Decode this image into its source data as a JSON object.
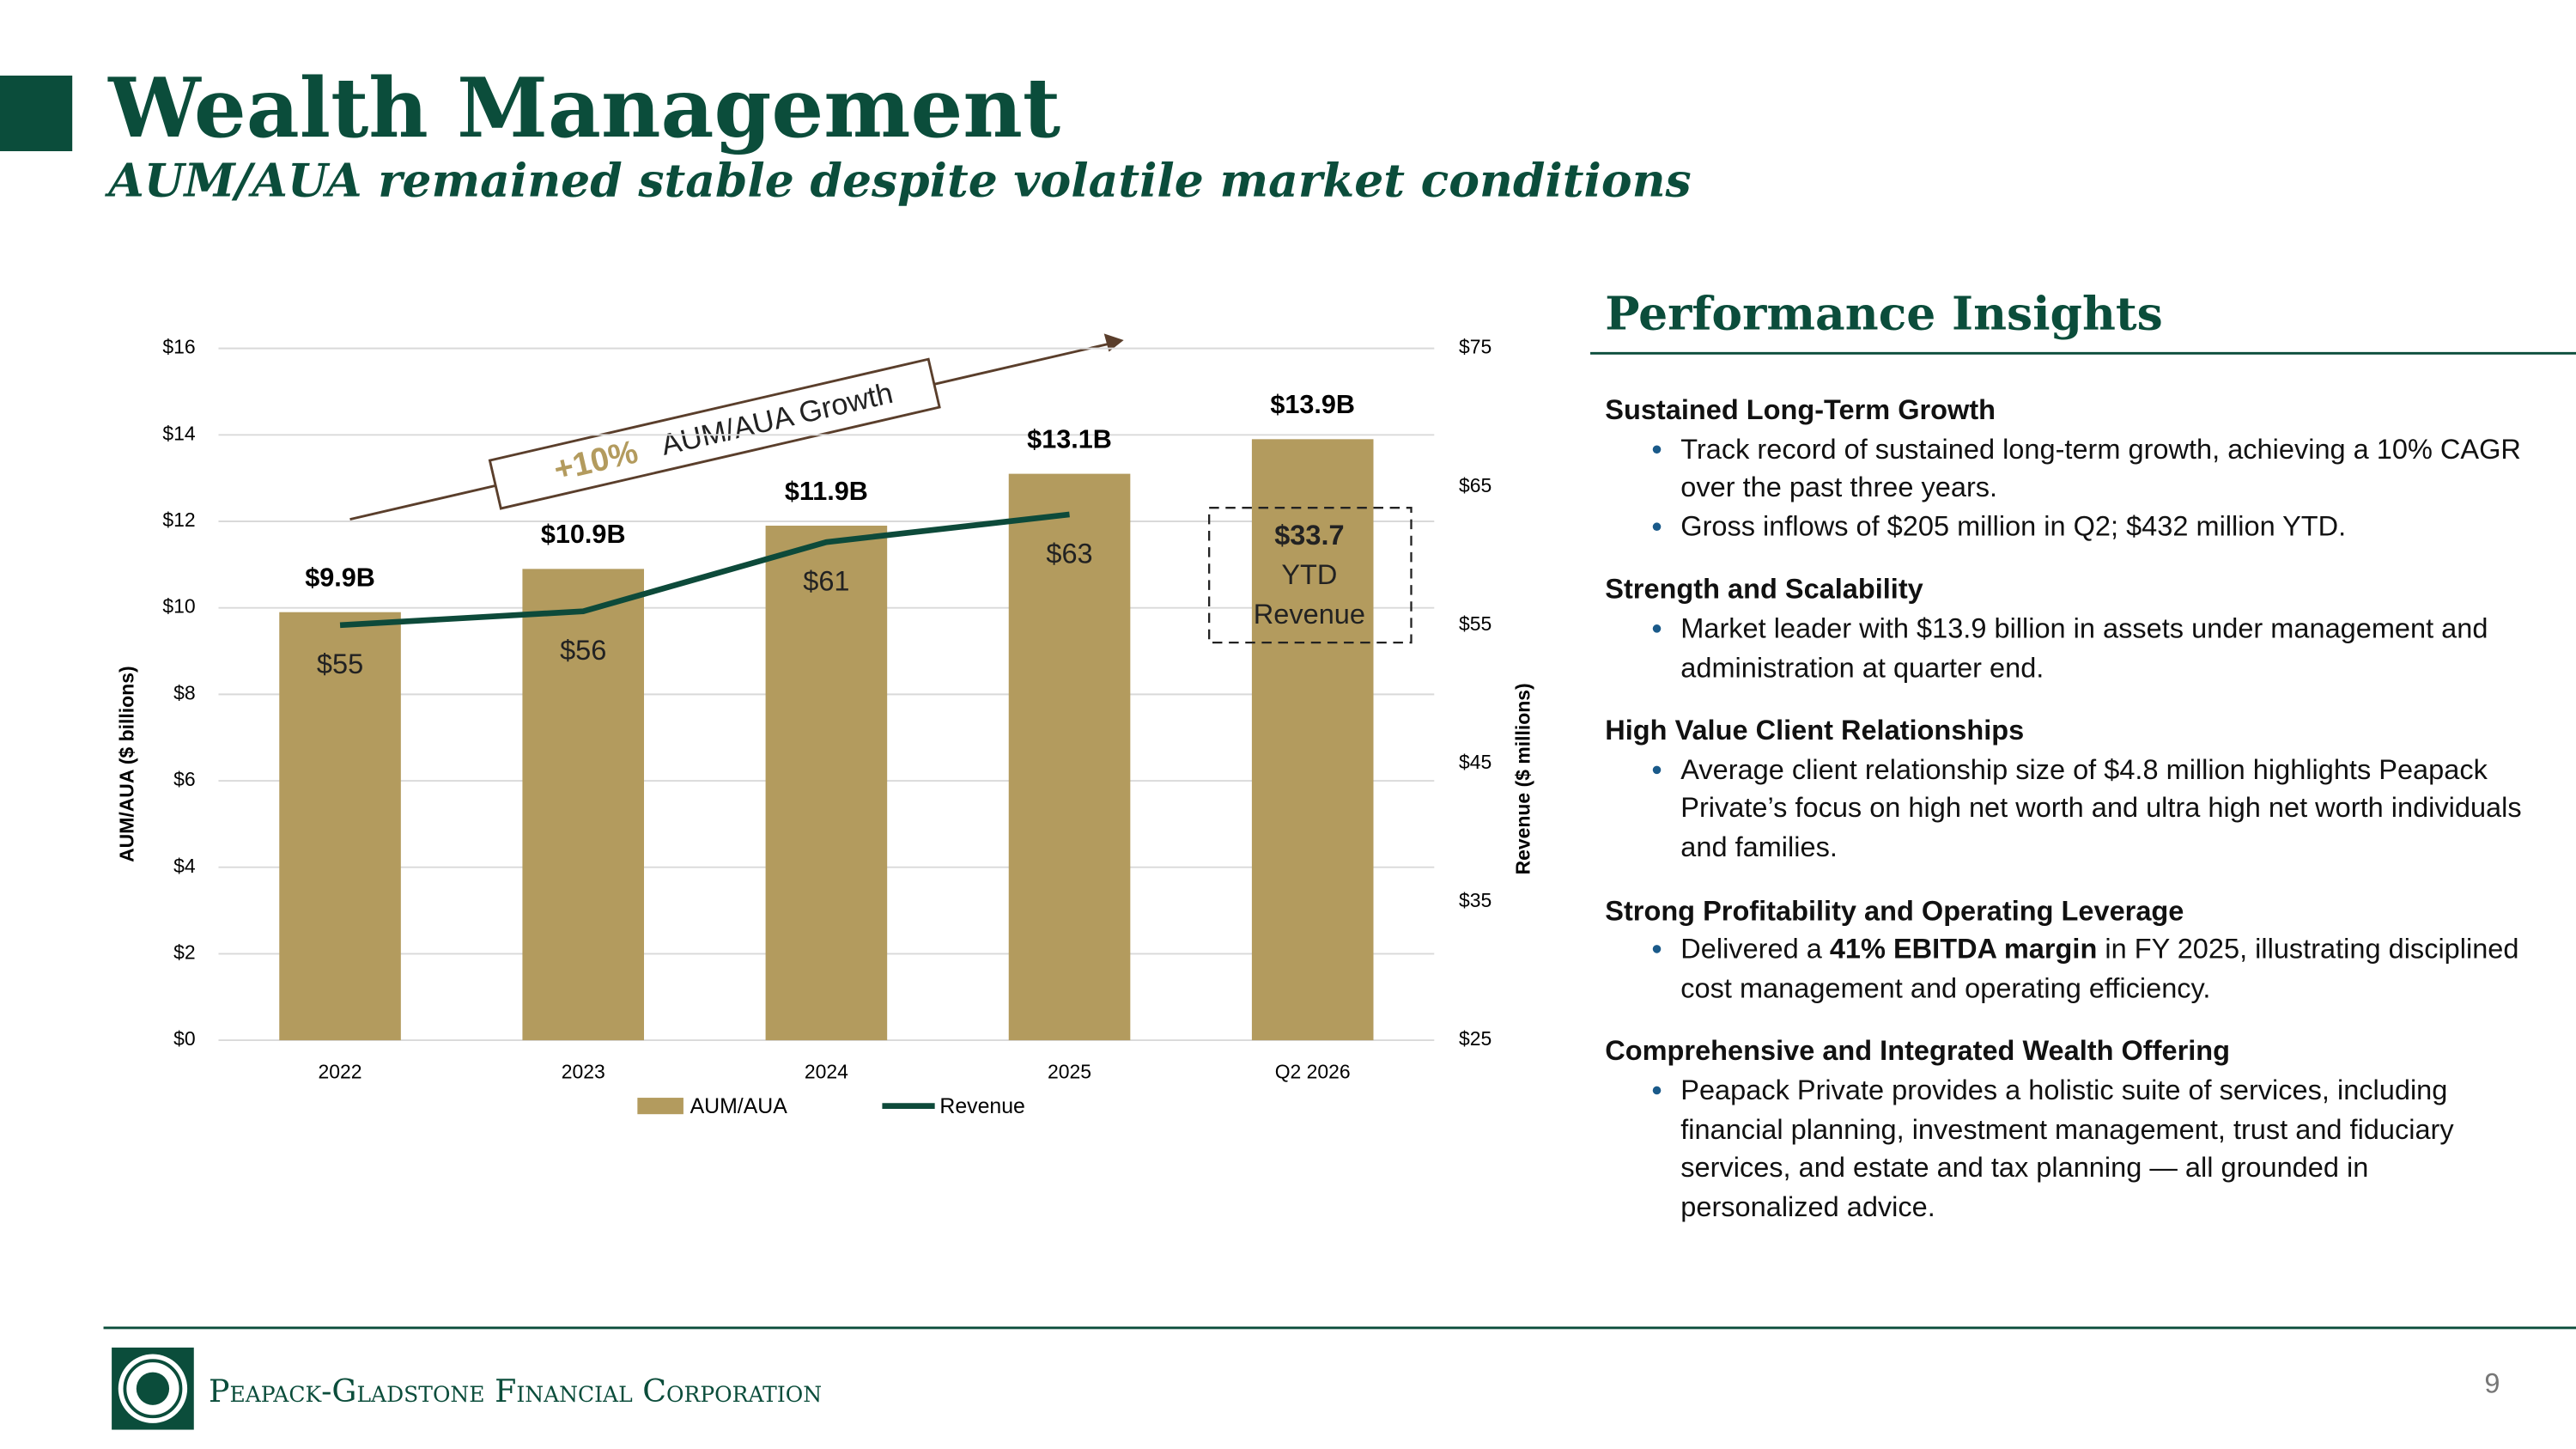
{
  "header": {
    "title": "Wealth Management",
    "subtitle": "AUM/AUA remained stable despite volatile market conditions"
  },
  "chart_data": {
    "type": "bar",
    "categories": [
      "2022",
      "2023",
      "2024",
      "2025",
      "Q2 2026"
    ],
    "series": [
      {
        "name": "AUM/AUA",
        "color": "#b39b5e",
        "values": [
          9.9,
          10.9,
          11.9,
          13.1,
          13.9
        ],
        "value_labels": [
          "$9.9B",
          "$10.9B",
          "$11.9B",
          "$13.1B",
          "$13.9B"
        ]
      },
      {
        "name": "Revenue",
        "type": "line",
        "axis": "y2",
        "color": "#0d4a3a",
        "values": [
          55,
          56,
          61,
          63,
          null
        ],
        "value_labels": [
          "$55",
          "$56",
          "$61",
          "$63",
          null
        ]
      }
    ],
    "ylabel": "AUM/AUA ($ billions)",
    "y2label": "Revenue ($ millions)",
    "ylim": [
      0,
      16
    ],
    "yticks": [
      {
        "value": 0,
        "label": "$0"
      },
      {
        "value": 2,
        "label": "$2"
      },
      {
        "value": 4,
        "label": "$4"
      },
      {
        "value": 6,
        "label": "$6"
      },
      {
        "value": 8,
        "label": "$8"
      },
      {
        "value": 10,
        "label": "$10"
      },
      {
        "value": 12,
        "label": "$12"
      },
      {
        "value": 14,
        "label": "$14"
      },
      {
        "value": 16,
        "label": "$16"
      }
    ],
    "y2lim": [
      25,
      75
    ],
    "y2ticks": [
      {
        "value": 25,
        "label": "$25"
      },
      {
        "value": 35,
        "label": "$35"
      },
      {
        "value": 45,
        "label": "$45"
      },
      {
        "value": 55,
        "label": "$55"
      },
      {
        "value": 65,
        "label": "$65"
      },
      {
        "value": 75,
        "label": "$75"
      }
    ],
    "grid": true,
    "legend": "bottom",
    "annotations": {
      "growth_pct": "+10%",
      "growth_text": "AUM/AUA Growth",
      "ytd": [
        "$33.7",
        "YTD",
        "Revenue"
      ]
    }
  },
  "insights": {
    "title": "Performance Insights",
    "sections": [
      {
        "heading": "Sustained Long-Term Growth",
        "bullets": [
          {
            "text": "Track record of sustained long-term growth, achieving a 10% CAGR over the past three years."
          },
          {
            "text": "Gross inflows of $205 million in Q2; $432 million YTD."
          }
        ]
      },
      {
        "heading": "Strength and Scalability",
        "bullets": [
          {
            "text": "Market leader with $13.9 billion in assets under management and administration at quarter end."
          }
        ]
      },
      {
        "heading": "High Value Client Relationships",
        "bullets": [
          {
            "text": "Average client relationship size of $4.8 million highlights Peapack Private’s focus on high net worth and ultra high net worth individuals and families."
          }
        ]
      },
      {
        "heading": "Strong Profitability and Operating Leverage",
        "bullets": [
          {
            "before": "Delivered a ",
            "bold": "41% EBITDA margin",
            "after": " in FY 2025, illustrating disciplined cost management and operating efficiency."
          }
        ]
      },
      {
        "heading": "Comprehensive and Integrated Wealth Offering",
        "bullets": [
          {
            "text": "Peapack Private provides a holistic suite of services, including financial planning, investment management, trust and fiduciary services, and estate and tax planning — all grounded in personalized advice."
          }
        ]
      }
    ]
  },
  "footer": {
    "company": "Peapack-Gladstone Financial Corporation",
    "page": "9"
  }
}
